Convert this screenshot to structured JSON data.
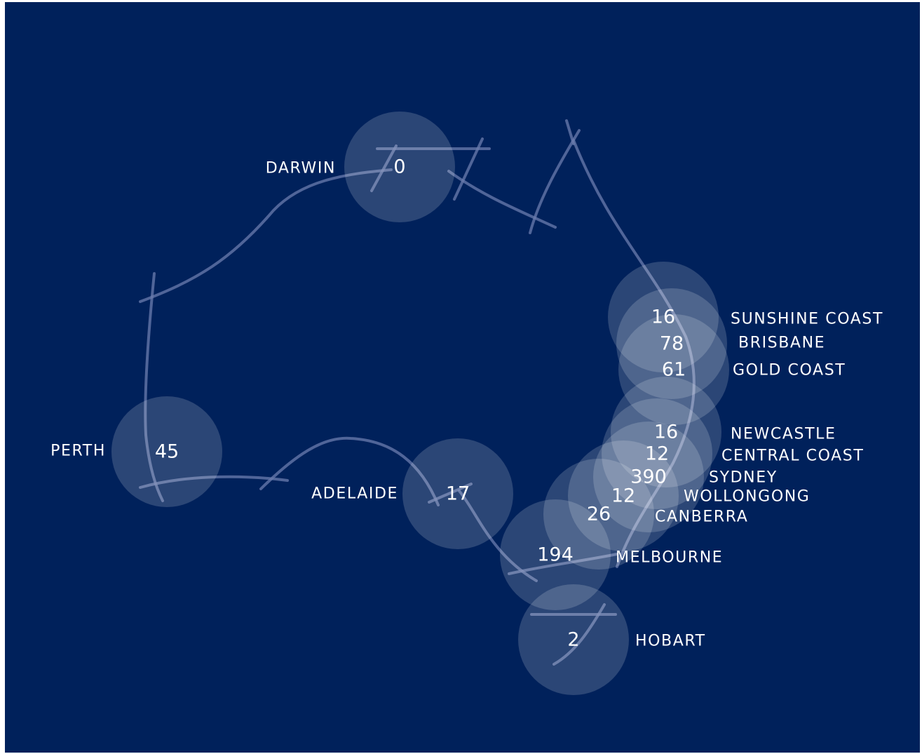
{
  "colors": {
    "background": "#00215b",
    "outline": "#6b7cad",
    "bubble": "#ffffff",
    "text": "#ffffff"
  },
  "cities": [
    {
      "name": "DARWIN",
      "count": "0"
    },
    {
      "name": "PERTH",
      "count": "45"
    },
    {
      "name": "ADELAIDE",
      "count": "17"
    },
    {
      "name": "SUNSHINE COAST",
      "count": "16"
    },
    {
      "name": "BRISBANE",
      "count": "78"
    },
    {
      "name": "GOLD COAST",
      "count": "61"
    },
    {
      "name": "NEWCASTLE",
      "count": "16"
    },
    {
      "name": "CENTRAL COAST",
      "count": "12"
    },
    {
      "name": "SYDNEY",
      "count": "390"
    },
    {
      "name": "WOLLONGONG",
      "count": "12"
    },
    {
      "name": "CANBERRA",
      "count": "26"
    },
    {
      "name": "MELBOURNE",
      "count": "194"
    },
    {
      "name": "HOBART",
      "count": "2"
    }
  ]
}
